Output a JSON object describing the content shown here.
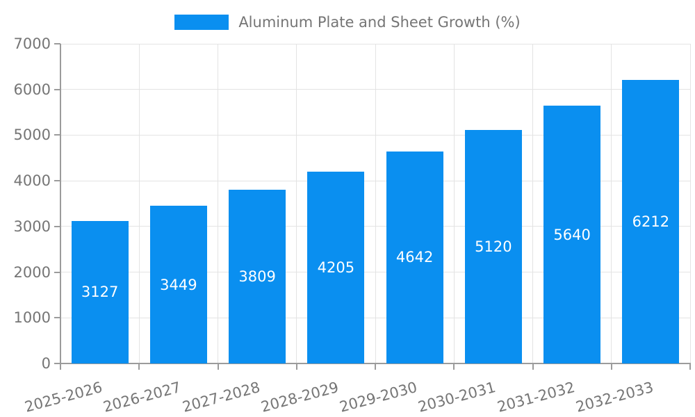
{
  "chart_data": {
    "type": "bar",
    "title": "Aluminum Plate and Sheet Growth (%)",
    "categories": [
      "2025-2026",
      "2026-2027",
      "2027-2028",
      "2028-2029",
      "2029-2030",
      "2030-2031",
      "2031-2032",
      "2032-2033"
    ],
    "values": [
      3127,
      3449,
      3809,
      4205,
      4642,
      5120,
      5640,
      6212
    ],
    "ylim": [
      0,
      7000
    ],
    "ytick_step": 1000,
    "yticks": [
      0,
      1000,
      2000,
      3000,
      4000,
      5000,
      6000,
      7000
    ],
    "grid": true,
    "legend_position": "top-center",
    "value_labels": "centered-inside-bars",
    "bar_color": "#0a8ff0",
    "value_label_color": "#ffffff",
    "grid_color": "#e3e3e3",
    "axis_color": "#9b9b9b",
    "tick_text_color": "#757575",
    "background_color": "#ffffff"
  }
}
